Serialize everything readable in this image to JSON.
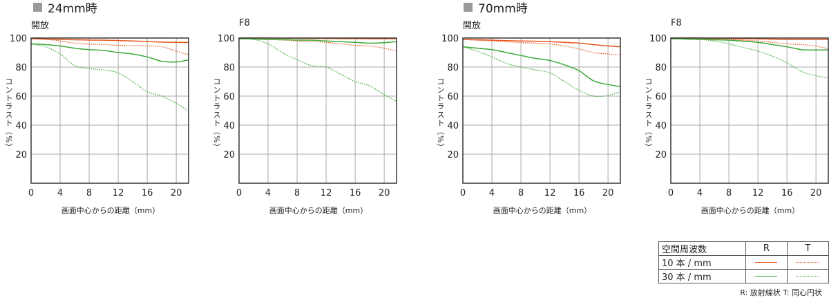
{
  "colors": {
    "r10": "#e8541a",
    "t10": "#e8541a",
    "r30": "#3aaa35",
    "t30": "#3aaa35",
    "grid": "#aaaaaa",
    "frame": "#333333"
  },
  "groups": [
    {
      "title": "24mm時"
    },
    {
      "title": "70mm時"
    }
  ],
  "chart_data": [
    {
      "type": "line",
      "group": "24mm時",
      "title": "開放",
      "ylabel": "コントラスト（%）",
      "xlabel": "画面中心からの距離（mm）",
      "xlim": [
        0,
        21.7
      ],
      "ylim": [
        0,
        100
      ],
      "grid": true,
      "xticks": [
        0,
        4,
        8,
        12,
        16,
        20
      ],
      "yticks": [
        20,
        40,
        60,
        80,
        100
      ],
      "x": [
        0,
        2,
        4,
        6,
        8,
        10,
        12,
        14,
        16,
        18,
        20,
        21.7
      ],
      "series": [
        {
          "name": "10本/mm R",
          "values": [
            99.5,
            99.3,
            99,
            98.8,
            98.6,
            98.5,
            98.3,
            98,
            97.6,
            97.2,
            97,
            97
          ]
        },
        {
          "name": "10本/mm T",
          "values": [
            99.5,
            99,
            98,
            96.5,
            95.8,
            95.5,
            95,
            94.8,
            94.5,
            94,
            91,
            88.5
          ]
        },
        {
          "name": "30本/mm R",
          "values": [
            96,
            95.5,
            94.5,
            93,
            92,
            91.5,
            90,
            89,
            87,
            84,
            83.5,
            85
          ]
        },
        {
          "name": "30本/mm T",
          "values": [
            96,
            94,
            89,
            81,
            79,
            78,
            76,
            70,
            63,
            60,
            55,
            49.5
          ]
        }
      ]
    },
    {
      "type": "line",
      "group": "24mm時",
      "title": "F8",
      "ylabel": "コントラスト（%）",
      "xlabel": "画面中心からの距離（mm）",
      "xlim": [
        0,
        21.7
      ],
      "ylim": [
        0,
        100
      ],
      "grid": true,
      "xticks": [
        0,
        4,
        8,
        12,
        16,
        20
      ],
      "yticks": [
        20,
        40,
        60,
        80,
        100
      ],
      "x": [
        0,
        2,
        4,
        6,
        8,
        10,
        12,
        14,
        16,
        18,
        20,
        21.7
      ],
      "series": [
        {
          "name": "10本/mm R",
          "values": [
            100,
            100,
            100,
            99.8,
            99.8,
            99.7,
            99.7,
            99.6,
            99.6,
            99.5,
            99.5,
            99.5
          ]
        },
        {
          "name": "10本/mm T",
          "values": [
            99.5,
            99.3,
            99,
            98.7,
            98,
            97.5,
            97,
            96,
            95,
            94.5,
            93,
            91
          ]
        },
        {
          "name": "30本/mm R",
          "values": [
            99.5,
            99.3,
            99,
            98.8,
            98.6,
            98.5,
            98,
            97.5,
            97,
            96.5,
            96.8,
            97.5
          ]
        },
        {
          "name": "30本/mm T",
          "values": [
            99.5,
            99,
            96,
            90,
            85,
            81,
            80,
            75,
            70,
            67,
            61,
            56.5
          ]
        }
      ]
    },
    {
      "type": "line",
      "group": "70mm時",
      "title": "開放",
      "ylabel": "コントラスト（%）",
      "xlabel": "画面中心からの距離（mm）",
      "xlim": [
        0,
        21.7
      ],
      "ylim": [
        0,
        100
      ],
      "grid": true,
      "xticks": [
        0,
        4,
        8,
        12,
        16,
        20
      ],
      "yticks": [
        20,
        40,
        60,
        80,
        100
      ],
      "x": [
        0,
        2,
        4,
        6,
        8,
        10,
        12,
        14,
        16,
        18,
        20,
        21.7
      ],
      "series": [
        {
          "name": "10本/mm R",
          "values": [
            99,
            98.8,
            98.5,
            98.2,
            98,
            97.8,
            97.5,
            97,
            96.5,
            95.5,
            94.5,
            94
          ]
        },
        {
          "name": "10本/mm T",
          "values": [
            99,
            98.5,
            98,
            97.5,
            96.8,
            96.5,
            96,
            94.5,
            92.5,
            90,
            89,
            88.5
          ]
        },
        {
          "name": "30本/mm R",
          "values": [
            94,
            93,
            92,
            90,
            88,
            86,
            84.5,
            81.5,
            77.5,
            70.5,
            68,
            66.5
          ]
        },
        {
          "name": "30本/mm T",
          "values": [
            94,
            91,
            87,
            82.5,
            80,
            78,
            76,
            70,
            64,
            60,
            60.5,
            63
          ]
        }
      ]
    },
    {
      "type": "line",
      "group": "70mm時",
      "title": "F8",
      "ylabel": "コントラスト（%）",
      "xlabel": "画面中心からの距離（mm）",
      "xlim": [
        0,
        21.7
      ],
      "ylim": [
        0,
        100
      ],
      "grid": true,
      "xticks": [
        0,
        4,
        8,
        12,
        16,
        20
      ],
      "yticks": [
        20,
        40,
        60,
        80,
        100
      ],
      "x": [
        0,
        2,
        4,
        6,
        8,
        10,
        12,
        14,
        16,
        18,
        20,
        21.7
      ],
      "series": [
        {
          "name": "10本/mm R",
          "values": [
            100,
            100,
            100,
            99.8,
            99.7,
            99.5,
            99.4,
            99.2,
            99,
            99,
            99,
            99
          ]
        },
        {
          "name": "10本/mm T",
          "values": [
            99.5,
            99.5,
            99.4,
            99.3,
            99,
            98.5,
            98,
            97,
            96,
            95.5,
            94.5,
            92.5
          ]
        },
        {
          "name": "30本/mm R",
          "values": [
            99.5,
            99.3,
            99,
            98.8,
            98.5,
            97.8,
            97,
            95.5,
            94,
            92,
            91.8,
            91.8
          ]
        },
        {
          "name": "30本/mm T",
          "values": [
            99.5,
            99.3,
            99,
            98,
            96,
            93.5,
            91,
            87.5,
            83,
            77,
            74,
            72.5
          ]
        }
      ]
    }
  ],
  "legend": {
    "header": "空間周波数",
    "col_r": "R",
    "col_t": "T",
    "row1": "10 本 / mm",
    "row2": "30 本 / mm",
    "note": "R: 放射線状  T: 同心円状"
  }
}
